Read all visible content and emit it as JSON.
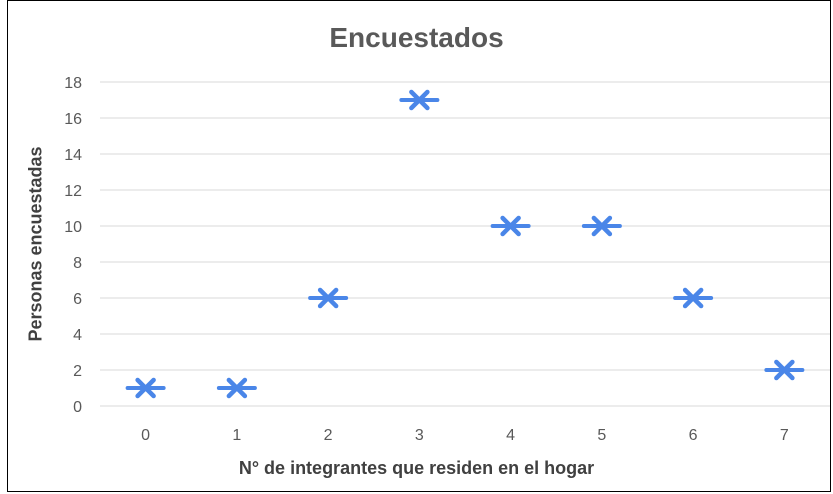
{
  "chart_data": {
    "type": "scatter",
    "title": "Encuestados",
    "xlabel": "N° de integrantes que residen en el hogar",
    "ylabel": "Personas encuestadas",
    "x": [
      0,
      1,
      2,
      3,
      4,
      5,
      6,
      7
    ],
    "y": [
      1,
      1,
      6,
      17,
      10,
      10,
      6,
      2
    ],
    "xticks": [
      "0",
      "1",
      "2",
      "3",
      "4",
      "5",
      "6",
      "7"
    ],
    "yticks": [
      "0",
      "2",
      "4",
      "6",
      "8",
      "10",
      "12",
      "14",
      "16",
      "18"
    ],
    "ylim": [
      0,
      18
    ],
    "grid": true,
    "marker": "star",
    "colors": {
      "marker": "#4A86E8",
      "grid": "#D9D9D9",
      "text": "#595959"
    }
  }
}
